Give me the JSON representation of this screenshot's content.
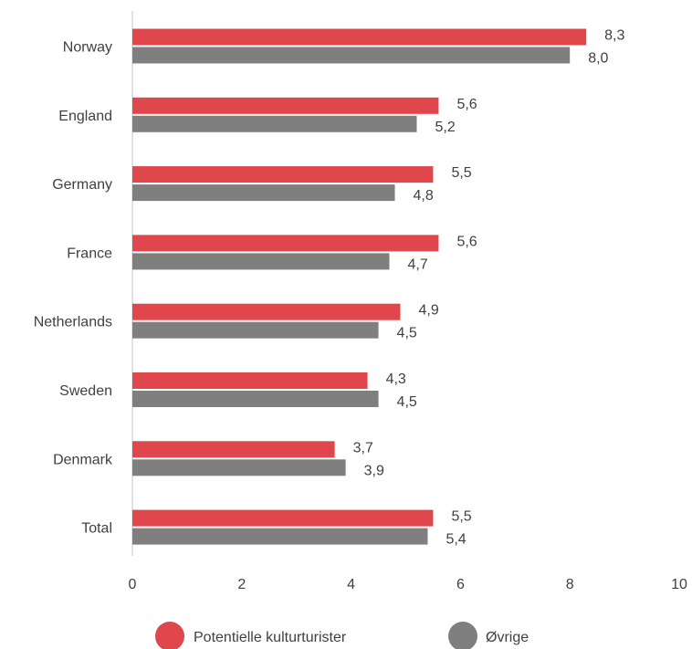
{
  "chart_data": {
    "type": "bar",
    "orientation": "horizontal",
    "categories": [
      "Norway",
      "England",
      "Germany",
      "France",
      "Netherlands",
      "Sweden",
      "Denmark",
      "Total"
    ],
    "series": [
      {
        "name": "Potentielle kulturturister",
        "color": "#e0474c",
        "values": [
          8.3,
          5.6,
          5.5,
          5.6,
          4.9,
          4.3,
          3.7,
          5.5
        ],
        "labels": [
          "8,3",
          "5,6",
          "5,5",
          "5,6",
          "4,9",
          "4,3",
          "3,7",
          "5,5"
        ]
      },
      {
        "name": "Øvrige",
        "color": "#7f7f7f",
        "values": [
          8.0,
          5.2,
          4.8,
          4.7,
          4.5,
          4.5,
          3.9,
          5.4
        ],
        "labels": [
          "8,0",
          "5,2",
          "4,8",
          "4,7",
          "4,5",
          "4,5",
          "3,9",
          "5,4"
        ]
      }
    ],
    "xlim": [
      0,
      10
    ],
    "xticks": [
      0,
      2,
      4,
      6,
      8,
      10
    ],
    "xtick_labels": [
      "0",
      "2",
      "4",
      "6",
      "8",
      "10"
    ],
    "title": "",
    "xlabel": "",
    "ylabel": "",
    "grid": false,
    "legend": "bottom"
  }
}
